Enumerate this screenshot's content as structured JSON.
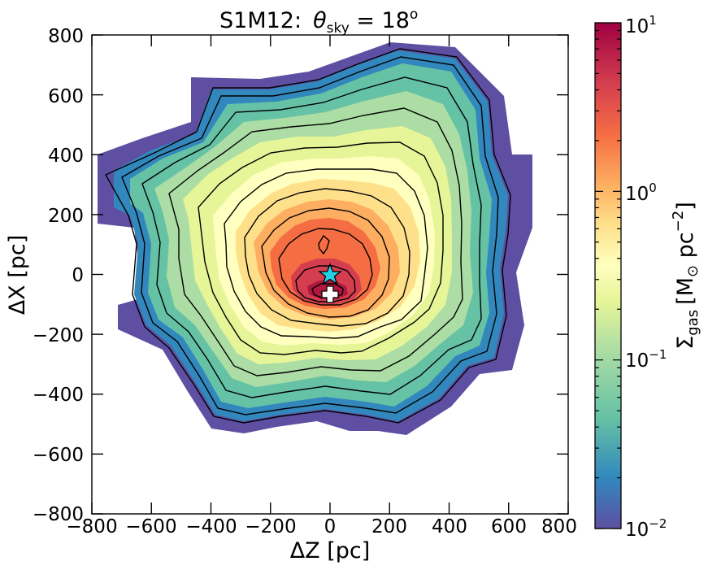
{
  "chart_data": {
    "type": "heatmap",
    "title_prefix": "S1M12:",
    "title_theta": "θ",
    "title_sub": "sky",
    "title_eq": " = 18",
    "title_sup": "o",
    "xlabel": "ΔZ [pc]",
    "ylabel": "ΔX [pc]",
    "xlim": [
      -800,
      800
    ],
    "ylim": [
      -800,
      800
    ],
    "x_ticks": [
      "−800",
      "−600",
      "−400",
      "−200",
      "0",
      "200",
      "400",
      "600",
      "800"
    ],
    "y_ticks": [
      "800",
      "600",
      "400",
      "200",
      "0",
      "−200",
      "−400",
      "−600",
      "−800"
    ],
    "colorbar": {
      "label_main": "Σ",
      "label_sub": "gas",
      "label_unit": "[M",
      "label_sun": "⊙",
      "label_pc": " pc",
      "label_exp": "−2",
      "label_close": "]",
      "scale": "log",
      "range": [
        0.01,
        10
      ],
      "ticks": [
        {
          "base": "10",
          "exp": "1"
        },
        {
          "base": "10",
          "exp": "0"
        },
        {
          "base": "10",
          "exp": "−1"
        },
        {
          "base": "10",
          "exp": "−2"
        }
      ],
      "colormap": "Spectral_r",
      "colors": [
        "#5e4fa2",
        "#3288bd",
        "#66c2a5",
        "#abdda4",
        "#e6f598",
        "#ffffbf",
        "#fee08b",
        "#fdae61",
        "#f46d43",
        "#d53e4f",
        "#9e0142"
      ]
    },
    "markers": [
      {
        "name": "star",
        "x": 0,
        "y": 0,
        "color": "#22d3e6"
      },
      {
        "name": "cross",
        "x": 0,
        "y": -60,
        "color": "#ffffff"
      }
    ],
    "peak_surface_density_approx": 3.0,
    "peak_location": [
      0,
      -60
    ],
    "contour_levels_shown": 18
  }
}
